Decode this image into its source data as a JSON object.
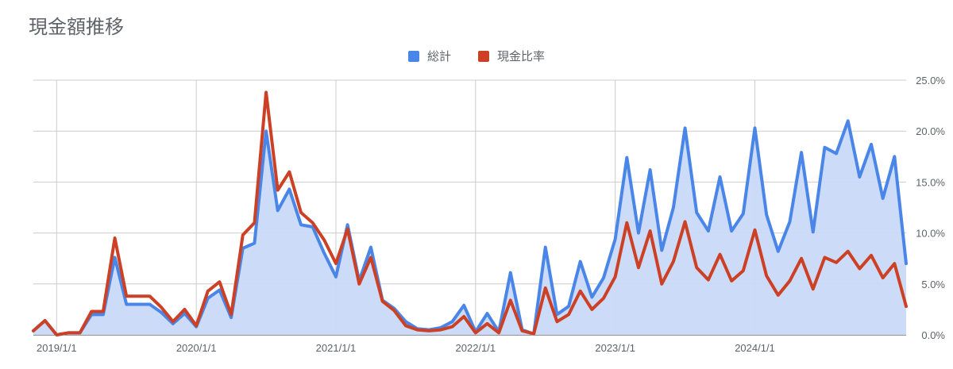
{
  "chart_data": {
    "type": "area",
    "title": "現金額推移",
    "xlabel": "",
    "ylabel": "",
    "x_start": "2018/11/1",
    "x_interval": "month",
    "x_ticks": [
      "2019/1/1",
      "2020/1/1",
      "2021/1/1",
      "2022/1/1",
      "2023/1/1",
      "2024/1/1"
    ],
    "y_ticks": [
      "0.0%",
      "5.0%",
      "10.0%",
      "15.0%",
      "20.0%",
      "25.0%"
    ],
    "ylim": [
      0,
      25
    ],
    "grid": true,
    "legend_position": "top",
    "series": [
      {
        "name": "総計",
        "color": "#4a86e8",
        "fill": "#c9daf8",
        "values": [
          0.4,
          1.4,
          0.0,
          0.2,
          0.2,
          2.0,
          2.0,
          7.6,
          3.0,
          3.0,
          3.0,
          2.2,
          1.1,
          2.1,
          0.8,
          3.6,
          4.4,
          1.7,
          8.5,
          9.0,
          20.0,
          12.2,
          14.3,
          10.8,
          10.6,
          8.0,
          5.7,
          10.8,
          5.3,
          8.6,
          3.4,
          2.6,
          1.3,
          0.6,
          0.5,
          0.7,
          1.3,
          2.9,
          0.3,
          2.1,
          0.3,
          6.1,
          0.5,
          0.1,
          8.6,
          2.0,
          2.8,
          7.2,
          3.7,
          5.6,
          9.4,
          17.4,
          10.0,
          16.2,
          8.3,
          12.5,
          20.3,
          12.0,
          10.2,
          15.5,
          10.2,
          11.9,
          20.3,
          11.8,
          8.2,
          11.1,
          17.9,
          10.1,
          18.4,
          17.8,
          21.0,
          15.5,
          18.7,
          13.4,
          17.5,
          7.0
        ],
        "label": "総計"
      },
      {
        "name": "現金比率",
        "color": "#cc4125",
        "values": [
          0.4,
          1.4,
          0.0,
          0.2,
          0.2,
          2.3,
          2.3,
          9.5,
          3.8,
          3.8,
          3.8,
          2.7,
          1.3,
          2.5,
          0.9,
          4.3,
          5.2,
          2.0,
          9.8,
          11.0,
          23.8,
          14.2,
          16.0,
          12.0,
          11.0,
          9.3,
          7.0,
          10.4,
          5.0,
          7.6,
          3.3,
          2.4,
          0.9,
          0.5,
          0.4,
          0.5,
          0.8,
          1.8,
          0.2,
          1.1,
          0.2,
          3.4,
          0.4,
          0.1,
          4.6,
          1.3,
          2.0,
          4.3,
          2.5,
          3.6,
          5.7,
          11.0,
          6.6,
          10.2,
          5.0,
          7.2,
          11.1,
          6.6,
          5.4,
          7.9,
          5.3,
          6.3,
          10.3,
          5.8,
          3.9,
          5.3,
          7.5,
          4.5,
          7.6,
          7.1,
          8.2,
          6.5,
          7.8,
          5.6,
          7.0,
          2.8
        ],
        "label": "現金比率"
      }
    ]
  }
}
